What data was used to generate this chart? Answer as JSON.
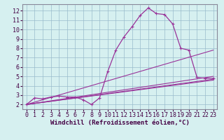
{
  "background_color": "#d6f0f0",
  "line_color": "#993399",
  "grid_color": "#99bbcc",
  "xlabel": "Windchill (Refroidissement éolien,°C)",
  "xlabel_fontsize": 6.5,
  "tick_fontsize": 6,
  "xlim": [
    -0.5,
    23.5
  ],
  "ylim": [
    1.5,
    12.7
  ],
  "yticks": [
    2,
    3,
    4,
    5,
    6,
    7,
    8,
    9,
    10,
    11,
    12
  ],
  "xticks": [
    0,
    1,
    2,
    3,
    4,
    5,
    6,
    7,
    8,
    9,
    10,
    11,
    12,
    13,
    14,
    15,
    16,
    17,
    18,
    19,
    20,
    21,
    22,
    23
  ],
  "series": {
    "main": {
      "x": [
        0,
        1,
        2,
        3,
        4,
        5,
        6,
        7,
        8,
        9,
        10,
        11,
        12,
        13,
        14,
        15,
        16,
        17,
        18,
        19,
        20,
        21,
        22,
        23
      ],
      "y": [
        2.0,
        2.7,
        2.6,
        2.8,
        2.9,
        2.8,
        2.8,
        2.5,
        2.0,
        2.7,
        5.5,
        7.8,
        9.2,
        10.3,
        11.5,
        12.3,
        11.7,
        11.6,
        10.6,
        8.0,
        7.8,
        4.9,
        4.8,
        4.8
      ]
    },
    "line2": {
      "x": [
        0,
        23
      ],
      "y": [
        2.0,
        7.8
      ]
    },
    "line3": {
      "x": [
        0,
        23
      ],
      "y": [
        2.0,
        5.0
      ]
    },
    "line4": {
      "x": [
        0,
        23
      ],
      "y": [
        2.0,
        4.6
      ]
    },
    "line5": {
      "x": [
        0,
        23
      ],
      "y": [
        2.0,
        4.7
      ]
    }
  }
}
